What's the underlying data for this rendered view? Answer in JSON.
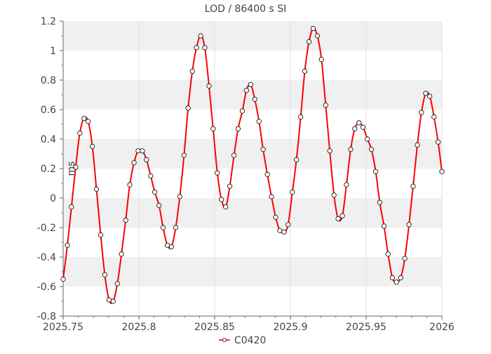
{
  "chart_data": {
    "type": "line",
    "title": "LOD / 86400 s SI",
    "xlabel": "",
    "ylabel": "ms",
    "xlim": [
      2025.75,
      2026
    ],
    "ylim": [
      -0.8,
      1.2
    ],
    "x_ticks": [
      "2025.75",
      "2025.8",
      "2025.85",
      "2025.9",
      "2025.95",
      "2026"
    ],
    "y_ticks": [
      "1.2",
      "1",
      "0.8",
      "0.6",
      "0.4",
      "0.2",
      "0",
      "-0.2",
      "-0.4",
      "-0.6",
      "-0.8"
    ],
    "grid": true,
    "legend_position": "bottom-center",
    "series": [
      {
        "name": "C0420",
        "color": "#ff0000",
        "marker": "circle",
        "points": [
          [
            2025.75,
            -0.55
          ],
          [
            2025.7528,
            -0.32
          ],
          [
            2025.7555,
            -0.06
          ],
          [
            2025.7583,
            0.21
          ],
          [
            2025.761,
            0.44
          ],
          [
            2025.7638,
            0.54
          ],
          [
            2025.7665,
            0.52
          ],
          [
            2025.7693,
            0.35
          ],
          [
            2025.772,
            0.06
          ],
          [
            2025.7748,
            -0.25
          ],
          [
            2025.7775,
            -0.52
          ],
          [
            2025.7803,
            -0.69
          ],
          [
            2025.783,
            -0.7
          ],
          [
            2025.7858,
            -0.58
          ],
          [
            2025.7885,
            -0.38
          ],
          [
            2025.7913,
            -0.15
          ],
          [
            2025.794,
            0.09
          ],
          [
            2025.7968,
            0.24
          ],
          [
            2025.7995,
            0.32
          ],
          [
            2025.8023,
            0.32
          ],
          [
            2025.805,
            0.26
          ],
          [
            2025.8078,
            0.15
          ],
          [
            2025.8105,
            0.04
          ],
          [
            2025.8133,
            -0.05
          ],
          [
            2025.816,
            -0.2
          ],
          [
            2025.8188,
            -0.32
          ],
          [
            2025.8215,
            -0.33
          ],
          [
            2025.8243,
            -0.2
          ],
          [
            2025.827,
            0.01
          ],
          [
            2025.8298,
            0.29
          ],
          [
            2025.8325,
            0.61
          ],
          [
            2025.8353,
            0.86
          ],
          [
            2025.838,
            1.02
          ],
          [
            2025.8408,
            1.1
          ],
          [
            2025.8435,
            1.02
          ],
          [
            2025.8463,
            0.76
          ],
          [
            2025.849,
            0.47
          ],
          [
            2025.8518,
            0.17
          ],
          [
            2025.8545,
            -0.01
          ],
          [
            2025.8573,
            -0.06
          ],
          [
            2025.86,
            0.08
          ],
          [
            2025.8628,
            0.29
          ],
          [
            2025.8655,
            0.47
          ],
          [
            2025.8683,
            0.59
          ],
          [
            2025.871,
            0.73
          ],
          [
            2025.8738,
            0.77
          ],
          [
            2025.8765,
            0.67
          ],
          [
            2025.8793,
            0.52
          ],
          [
            2025.882,
            0.33
          ],
          [
            2025.8848,
            0.16
          ],
          [
            2025.8875,
            0.01
          ],
          [
            2025.8903,
            -0.13
          ],
          [
            2025.893,
            -0.22
          ],
          [
            2025.8958,
            -0.23
          ],
          [
            2025.8985,
            -0.18
          ],
          [
            2025.9013,
            0.04
          ],
          [
            2025.904,
            0.26
          ],
          [
            2025.9068,
            0.55
          ],
          [
            2025.9095,
            0.86
          ],
          [
            2025.9123,
            1.06
          ],
          [
            2025.915,
            1.15
          ],
          [
            2025.9178,
            1.1
          ],
          [
            2025.9205,
            0.94
          ],
          [
            2025.9233,
            0.63
          ],
          [
            2025.926,
            0.32
          ],
          [
            2025.9288,
            0.02
          ],
          [
            2025.9315,
            -0.14
          ],
          [
            2025.9343,
            -0.12
          ],
          [
            2025.937,
            0.09
          ],
          [
            2025.9398,
            0.33
          ],
          [
            2025.9425,
            0.47
          ],
          [
            2025.9453,
            0.51
          ],
          [
            2025.948,
            0.48
          ],
          [
            2025.9508,
            0.4
          ],
          [
            2025.9535,
            0.33
          ],
          [
            2025.9563,
            0.18
          ],
          [
            2025.959,
            -0.03
          ],
          [
            2025.9618,
            -0.19
          ],
          [
            2025.9645,
            -0.38
          ],
          [
            2025.9673,
            -0.54
          ],
          [
            2025.97,
            -0.57
          ],
          [
            2025.9728,
            -0.54
          ],
          [
            2025.9755,
            -0.41
          ],
          [
            2025.9783,
            -0.18
          ],
          [
            2025.981,
            0.08
          ],
          [
            2025.9838,
            0.36
          ],
          [
            2025.9865,
            0.58
          ],
          [
            2025.9893,
            0.71
          ],
          [
            2025.992,
            0.69
          ],
          [
            2025.9948,
            0.55
          ],
          [
            2025.9975,
            0.38
          ],
          [
            2026.0,
            0.18
          ]
        ]
      }
    ]
  }
}
